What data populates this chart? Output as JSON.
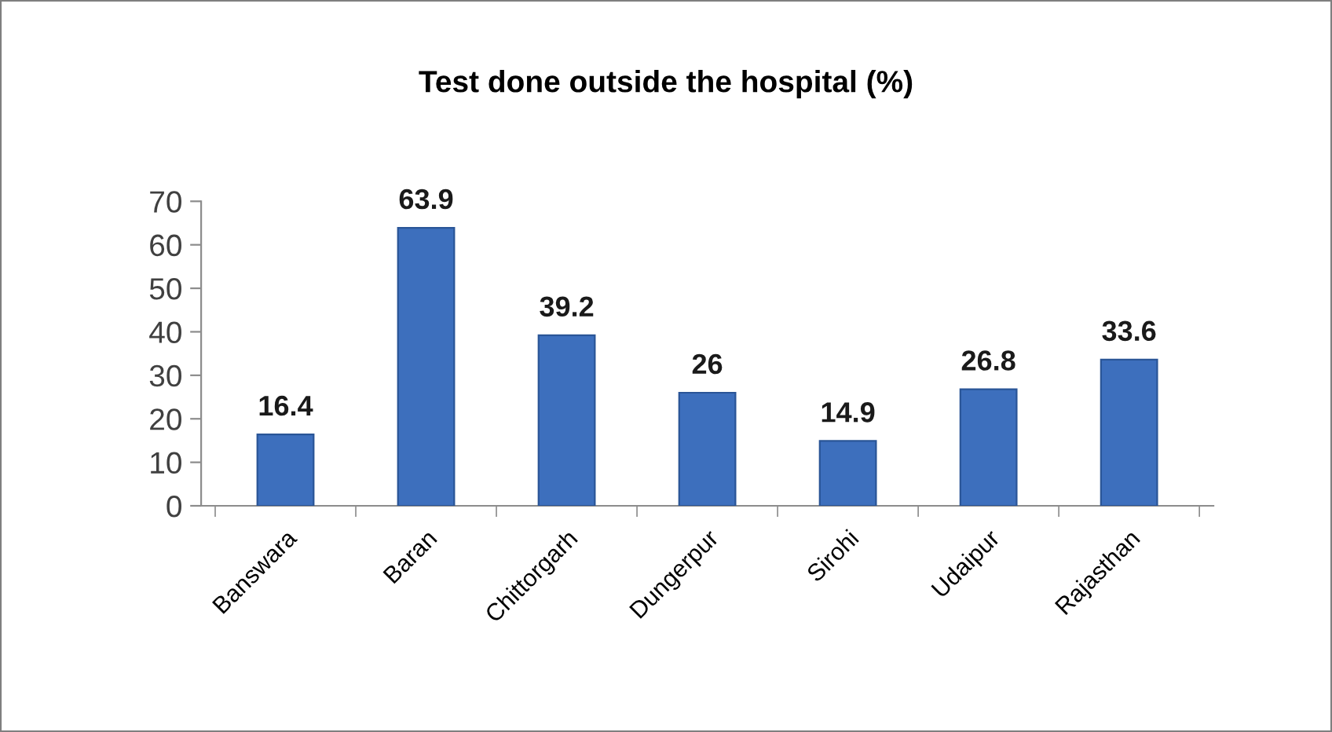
{
  "chart_data": {
    "type": "bar",
    "title": "Test done outside the hospital (%)",
    "categories": [
      "Banswara",
      "Baran",
      "Chittorgarh",
      "Dungerpur",
      "Sirohi",
      "Udaipur",
      "Rajasthan"
    ],
    "values": [
      16.4,
      63.9,
      39.2,
      26,
      14.9,
      26.8,
      33.6
    ],
    "color": "#3d6fbd",
    "data_labels": true,
    "grid": false,
    "legend": false,
    "ylim": [
      0,
      70
    ],
    "yticks": [
      0,
      10,
      20,
      30,
      40,
      50,
      60,
      70
    ]
  }
}
